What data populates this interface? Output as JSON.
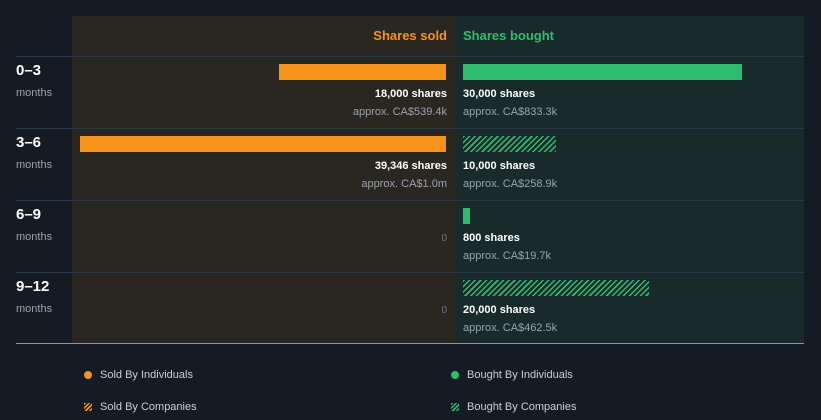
{
  "colors": {
    "sold": "#f7931a",
    "bought": "#2ebd6f",
    "background": "#151b24",
    "sold_panel": "#2a2620",
    "bought_panel": "#192a2a"
  },
  "chart_data": {
    "type": "bar",
    "orientation": "horizontal-diverging",
    "column_headers": {
      "sold": "Shares sold",
      "bought": "Shares bought"
    },
    "categories": [
      {
        "label": "0–3",
        "sublabel": "months"
      },
      {
        "label": "3–6",
        "sublabel": "months"
      },
      {
        "label": "6–9",
        "sublabel": "months"
      },
      {
        "label": "9–12",
        "sublabel": "months"
      }
    ],
    "sold": [
      {
        "shares": 18000,
        "shares_text": "18,000 shares",
        "approx_text": "approx. CA$539.4k",
        "by": "individuals"
      },
      {
        "shares": 39346,
        "shares_text": "39,346 shares",
        "approx_text": "approx. CA$1.0m",
        "by": "individuals"
      },
      {
        "shares": 0,
        "zero_text": "0"
      },
      {
        "shares": 0,
        "zero_text": "0"
      }
    ],
    "bought": [
      {
        "shares": 30000,
        "shares_text": "30,000 shares",
        "approx_text": "approx. CA$833.3k",
        "by": "individuals"
      },
      {
        "shares": 10000,
        "shares_text": "10,000 shares",
        "approx_text": "approx. CA$258.9k",
        "by": "companies"
      },
      {
        "shares": 800,
        "shares_text": "800 shares",
        "approx_text": "approx. CA$19.7k",
        "by": "individuals"
      },
      {
        "shares": 20000,
        "shares_text": "20,000 shares",
        "approx_text": "approx. CA$462.5k",
        "by": "companies"
      }
    ],
    "legend": {
      "sold_individuals": "Sold By Individuals",
      "bought_individuals": "Bought By Individuals",
      "sold_companies": "Sold By Companies",
      "bought_companies": "Bought By Companies"
    },
    "legend_placement": "bottom"
  }
}
